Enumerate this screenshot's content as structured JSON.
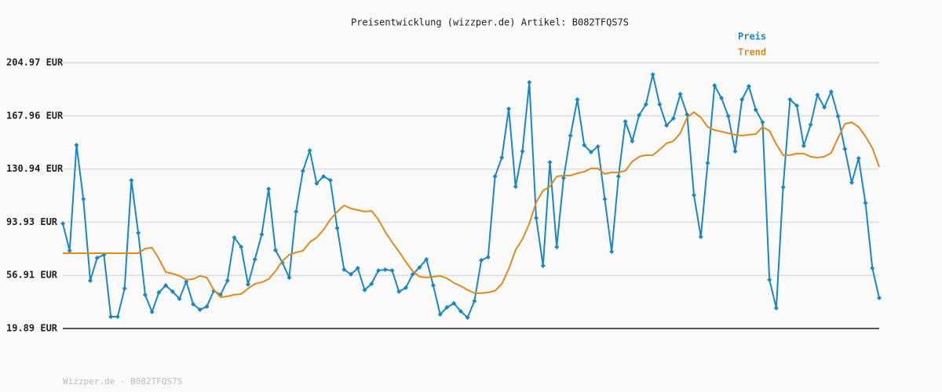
{
  "chart_data": {
    "type": "line",
    "title": "Preisentwicklung (wizzper.de) Artikel: B082TFQS7S",
    "footer": "Wizzper.de - B082TFQS7S",
    "ylim": [
      19.89,
      204.97
    ],
    "yticks": [
      {
        "value": 19.89,
        "label": "19.89 EUR"
      },
      {
        "value": 56.91,
        "label": "56.91 EUR"
      },
      {
        "value": 93.93,
        "label": "93.93 EUR"
      },
      {
        "value": 130.94,
        "label": "130.94 EUR"
      },
      {
        "value": 167.96,
        "label": "167.96 EUR"
      },
      {
        "value": 204.97,
        "label": "204.97 EUR"
      }
    ],
    "grid": true,
    "series": [
      {
        "name": "Preis",
        "color": "#1a87c4",
        "values": [
          93.0,
          74.0,
          147.6,
          110.0,
          53.2,
          69.0,
          71.2,
          28.1,
          28.1,
          47.7,
          123.1,
          86.5,
          43.4,
          31.4,
          45.0,
          49.9,
          45.6,
          40.6,
          52.6,
          36.8,
          33.0,
          35.2,
          46.1,
          43.4,
          53.2,
          83.2,
          76.7,
          50.5,
          68.0,
          85.4,
          117.1,
          74.5,
          65.8,
          55.4,
          101.3,
          129.6,
          143.8,
          120.9,
          125.8,
          123.1,
          89.8,
          60.9,
          57.6,
          61.9,
          46.7,
          51.0,
          60.3,
          60.9,
          60.3,
          45.6,
          48.3,
          57.6,
          62.5,
          68.0,
          49.9,
          29.7,
          34.6,
          37.4,
          31.9,
          27.5,
          39.0,
          67.4,
          69.6,
          125.8,
          138.9,
          172.8,
          118.7,
          143.3,
          191.3,
          96.9,
          63.6,
          135.6,
          76.7,
          124.7,
          154.2,
          179.3,
          147.6,
          142.7,
          146.6,
          110.0,
          73.4,
          125.8,
          164.0,
          150.4,
          168.4,
          176.0,
          196.8,
          176.0,
          161.3,
          166.2,
          183.1,
          168.9,
          112.7,
          83.8,
          135.1,
          189.1,
          180.4,
          167.8,
          143.3,
          179.3,
          188.6,
          172.2,
          163.5,
          53.8,
          34.1,
          118.2,
          179.3,
          175.0,
          147.1,
          161.8,
          182.6,
          173.9,
          184.8,
          167.8,
          144.9,
          121.5,
          138.4,
          107.3,
          61.9,
          41.2
        ]
      },
      {
        "name": "Trend",
        "color": "#e08a1e",
        "values": [
          72.3,
          72.3,
          72.3,
          72.3,
          72.3,
          72.3,
          72.3,
          72.3,
          72.3,
          72.3,
          72.3,
          72.3,
          75.6,
          76.1,
          68.5,
          59.2,
          58.1,
          56.5,
          53.8,
          54.3,
          56.5,
          55.4,
          46.7,
          41.7,
          42.3,
          43.4,
          43.9,
          47.7,
          51.0,
          52.1,
          54.3,
          59.8,
          66.9,
          71.2,
          72.9,
          74.0,
          80.0,
          83.2,
          88.7,
          95.8,
          101.3,
          105.6,
          103.4,
          102.4,
          101.3,
          101.8,
          95.8,
          87.1,
          80.0,
          73.4,
          66.3,
          59.8,
          55.9,
          55.4,
          55.9,
          56.5,
          54.8,
          51.6,
          49.4,
          46.7,
          44.5,
          44.5,
          45.0,
          46.1,
          51.0,
          61.4,
          74.5,
          82.1,
          93.0,
          107.8,
          116.0,
          118.7,
          125.8,
          126.4,
          126.4,
          128.0,
          129.1,
          131.3,
          131.3,
          127.5,
          128.6,
          128.6,
          129.7,
          136.2,
          139.5,
          140.6,
          140.6,
          144.4,
          148.8,
          150.4,
          155.9,
          166.8,
          170.6,
          166.8,
          160.2,
          158.0,
          157.0,
          155.9,
          154.8,
          154.2,
          154.8,
          155.3,
          160.2,
          157.5,
          148.2,
          140.6,
          140.6,
          141.7,
          141.7,
          139.5,
          138.9,
          139.5,
          142.2,
          152.6,
          162.4,
          163.5,
          160.2,
          153.7,
          145.5,
          132.4
        ]
      }
    ]
  }
}
